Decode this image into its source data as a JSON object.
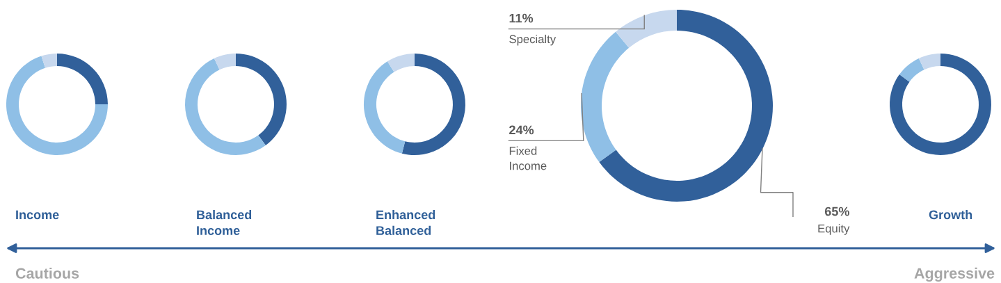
{
  "chart_data": [
    {
      "type": "donut",
      "title": "Income",
      "categories": [
        null,
        null,
        null
      ],
      "values": [
        25,
        70,
        5
      ],
      "colors": [
        "#31609a",
        "#8fbfe6",
        "#c7d8ee"
      ],
      "annotations": [
        "Cautious"
      ]
    },
    {
      "type": "donut",
      "title": "Balanced Income",
      "categories": [
        null,
        null,
        null
      ],
      "values": [
        40,
        53,
        7
      ],
      "colors": [
        "#31609a",
        "#8fbfe6",
        "#c7d8ee"
      ]
    },
    {
      "type": "donut",
      "title": "Enhanced Balanced",
      "categories": [
        null,
        null,
        null
      ],
      "values": [
        54,
        37,
        9
      ],
      "colors": [
        "#31609a",
        "#8fbfe6",
        "#c7d8ee"
      ]
    },
    {
      "type": "donut",
      "categories": [
        "Equity",
        "Fixed Income",
        "Specialty"
      ],
      "values": [
        65,
        24,
        11
      ],
      "colors": [
        "#31609a",
        "#8fbfe6",
        "#c7d8ee"
      ],
      "value_labels": [
        "65%",
        "24%",
        "11%"
      ]
    },
    {
      "type": "donut",
      "title": "Growth",
      "categories": [
        null,
        null,
        null
      ],
      "values": [
        85,
        8,
        7
      ],
      "colors": [
        "#31609a",
        "#8fbfe6",
        "#c7d8ee"
      ],
      "annotations": [
        "Aggressive"
      ]
    }
  ]
}
